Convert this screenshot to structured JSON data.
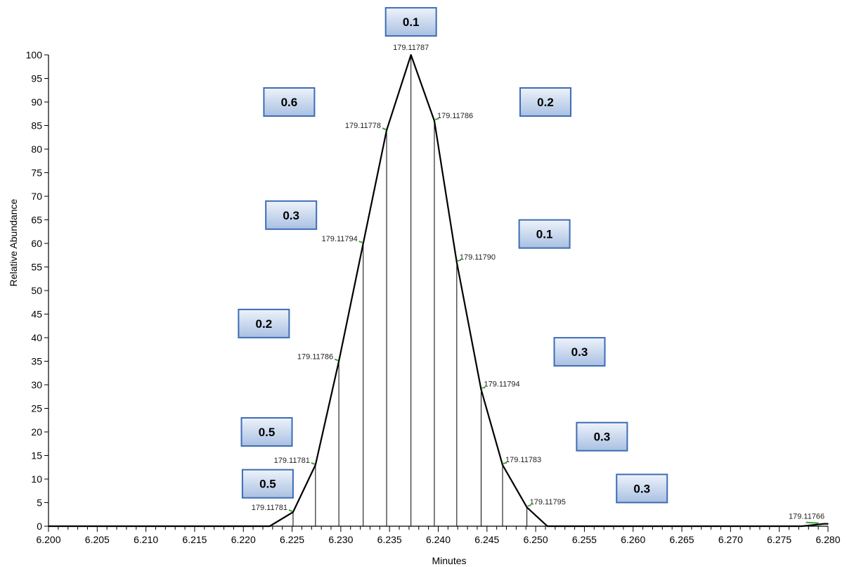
{
  "chart_data": {
    "type": "line",
    "xlabel": "Minutes",
    "ylabel": "Relative Abundance",
    "xlim": [
      6.2,
      6.28
    ],
    "ylim": [
      0,
      100
    ],
    "x_ticks": [
      "6.200",
      "6.205",
      "6.210",
      "6.215",
      "6.220",
      "6.225",
      "6.230",
      "6.235",
      "6.240",
      "6.245",
      "6.250",
      "6.255",
      "6.260",
      "6.265",
      "6.270",
      "6.275",
      "6.280"
    ],
    "y_ticks": [
      "0",
      "5",
      "10",
      "15",
      "20",
      "25",
      "30",
      "35",
      "40",
      "45",
      "50",
      "55",
      "60",
      "65",
      "70",
      "75",
      "80",
      "85",
      "90",
      "95",
      "100"
    ],
    "series": [
      {
        "x": [
          6.2,
          6.2227,
          6.2251,
          6.2274,
          6.2298,
          6.2323,
          6.2347,
          6.2372,
          6.2396,
          6.2419,
          6.2444,
          6.2466,
          6.2491,
          6.2512,
          6.2773,
          6.2796,
          6.28
        ],
        "y": [
          0,
          0,
          3,
          13,
          35,
          60,
          84,
          100,
          86,
          56,
          29,
          13,
          4,
          0,
          0,
          0.5,
          0.5
        ]
      }
    ],
    "stems": [
      {
        "x": 6.2251,
        "y": 3
      },
      {
        "x": 6.2274,
        "y": 13
      },
      {
        "x": 6.2298,
        "y": 35
      },
      {
        "x": 6.2323,
        "y": 60
      },
      {
        "x": 6.2347,
        "y": 84
      },
      {
        "x": 6.2372,
        "y": 100
      },
      {
        "x": 6.2396,
        "y": 86
      },
      {
        "x": 6.2419,
        "y": 56
      },
      {
        "x": 6.2444,
        "y": 29
      },
      {
        "x": 6.2466,
        "y": 13
      },
      {
        "x": 6.2491,
        "y": 4
      }
    ],
    "annotations": [
      {
        "text": "179.11781",
        "x": 6.2251,
        "y": 3,
        "side": "left"
      },
      {
        "text": "179.11781",
        "x": 6.2274,
        "y": 13,
        "side": "left"
      },
      {
        "text": "179.11786",
        "x": 6.2298,
        "y": 35,
        "side": "left"
      },
      {
        "text": "179.11794",
        "x": 6.2323,
        "y": 60,
        "side": "left"
      },
      {
        "text": "179.11778",
        "x": 6.2347,
        "y": 84,
        "side": "left"
      },
      {
        "text": "179.11787",
        "x": 6.2372,
        "y": 100,
        "side": "top"
      },
      {
        "text": "179.11786",
        "x": 6.2396,
        "y": 86,
        "side": "right"
      },
      {
        "text": "179.11790",
        "x": 6.2419,
        "y": 56,
        "side": "right"
      },
      {
        "text": "179.11794",
        "x": 6.2444,
        "y": 29,
        "side": "right"
      },
      {
        "text": "179.11783",
        "x": 6.2466,
        "y": 13,
        "side": "right"
      },
      {
        "text": "179.11795",
        "x": 6.2491,
        "y": 4,
        "side": "right"
      },
      {
        "text": "179.11766",
        "x": 6.2786,
        "y": 0.5,
        "side": "top-left"
      }
    ],
    "boxes": [
      {
        "text": "0.5",
        "x": 6.2225,
        "y": 9
      },
      {
        "text": "0.5",
        "x": 6.2224,
        "y": 20
      },
      {
        "text": "0.2",
        "x": 6.2221,
        "y": 43
      },
      {
        "text": "0.3",
        "x": 6.2249,
        "y": 66
      },
      {
        "text": "0.6",
        "x": 6.2247,
        "y": 90
      },
      {
        "text": "0.1",
        "x": 6.2372,
        "y": 107
      },
      {
        "text": "0.2",
        "x": 6.251,
        "y": 90
      },
      {
        "text": "0.1",
        "x": 6.2509,
        "y": 62
      },
      {
        "text": "0.3",
        "x": 6.2545,
        "y": 37
      },
      {
        "text": "0.3",
        "x": 6.2568,
        "y": 19
      },
      {
        "text": "0.3",
        "x": 6.2609,
        "y": 8
      }
    ]
  }
}
